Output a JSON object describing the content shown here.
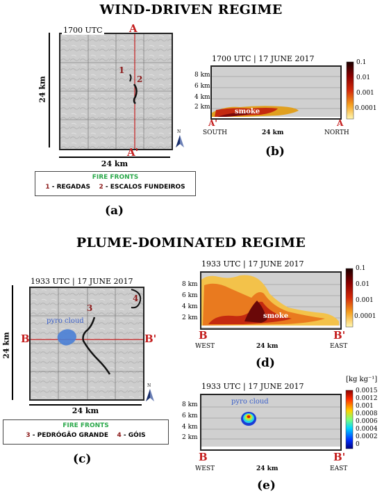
{
  "top": {
    "heading": "WIND-DRIVEN REGIME",
    "panel_a": {
      "time": "1700 UTC",
      "section_start": "A",
      "section_end": "A'",
      "front_labels": [
        "1",
        "2"
      ],
      "dim_vertical": "24 km",
      "dim_horizontal": "24 km",
      "north": "N",
      "legend_title": "FIRE FRONTS",
      "legend_items": [
        {
          "num": "1",
          "name": " - REGADAS"
        },
        {
          "num": "2",
          "name": " - ESCALOS FUNDEIROS"
        }
      ],
      "caption": "(a)"
    },
    "panel_b": {
      "title": "1700 UTC | 17 JUNE 2017",
      "yticks": [
        "8 km",
        "6 km",
        "4 km",
        "2 km"
      ],
      "plume_label": "smoke",
      "left_letter": "A'",
      "right_letter": "A",
      "left_dir": "SOUTH",
      "right_dir": "NORTH",
      "xlabel": "24 km",
      "cbar_ticks": [
        "0.1",
        "0.01",
        "0.001",
        "0.0001"
      ],
      "caption": "(b)"
    }
  },
  "bottom": {
    "heading": "PLUME-DOMINATED REGIME",
    "panel_c": {
      "title": "1933 UTC | 17 JUNE 2017",
      "front_labels": [
        "3",
        "4"
      ],
      "cloud_label": "pyro cloud",
      "section_start": "B",
      "section_end": "B'",
      "dim_vertical": "24 km",
      "dim_horizontal": "24 km",
      "north": "N",
      "legend_title": "FIRE FRONTS",
      "legend_items": [
        {
          "num": "3",
          "name": " - PEDRÓGÃO GRANDE"
        },
        {
          "num": "4",
          "name": " - GÓIS"
        }
      ],
      "caption": "(c)"
    },
    "panel_d": {
      "title": "1933 UTC | 17 JUNE 2017",
      "yticks": [
        "8 km",
        "6 km",
        "4 km",
        "2 km"
      ],
      "plume_label": "smoke",
      "left_letter": "B",
      "right_letter": "B'",
      "left_dir": "WEST",
      "right_dir": "EAST",
      "xlabel": "24 km",
      "cbar_ticks": [
        "0.1",
        "0.01",
        "0.001",
        "0.0001"
      ],
      "caption": "(d)"
    },
    "panel_e": {
      "title": "1933 UTC | 17 JUNE 2017",
      "yticks": [
        "8 km",
        "6 km",
        "4 km",
        "2 km"
      ],
      "cloud_label": "pyro cloud",
      "left_letter": "B",
      "right_letter": "B'",
      "left_dir": "WEST",
      "right_dir": "EAST",
      "xlabel": "24 km",
      "cbar_unit": "[kg kg⁻¹]",
      "cbar_ticks": [
        "0.0015",
        "0.0012",
        "0.001",
        "0.0008",
        "0.0006",
        "0.0004",
        "0.0002",
        "0"
      ],
      "caption": "(e)"
    }
  },
  "colors": {
    "section_red": "#c41e1e",
    "legend_green": "#2aa84a",
    "cloud_blue": "#4a7fd6",
    "background_gray": "#d0d0d0"
  }
}
